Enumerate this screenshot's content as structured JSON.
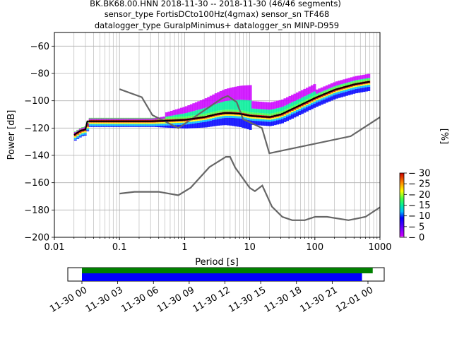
{
  "chart_data": [
    {
      "type": "heatmap",
      "title_lines": [
        "BK.BK68.00.HNN   2018-11-30 -- 2018-11-30  (46/46 segments)",
        "sensor_type FortisDCto100Hz(4gmax) sensor_sn TF468",
        "datalogger_type GuralpMinimus+ datalogger_sn MINP-D959"
      ],
      "xlabel": "Period [s]",
      "ylabel": "Power [dB]",
      "xscale": "log",
      "xlim": [
        0.01,
        1000
      ],
      "ylim": [
        -200,
        -50
      ],
      "grid": true,
      "x_ticks": [
        {
          "value": 0.01,
          "label": "0.01"
        },
        {
          "value": 0.1,
          "label": "0.1"
        },
        {
          "value": 1,
          "label": "1"
        },
        {
          "value": 10,
          "label": "10"
        },
        {
          "value": 100,
          "label": "100"
        },
        {
          "value": 1000,
          "label": "1000"
        }
      ],
      "y_ticks": [
        {
          "value": -60,
          "label": "−60"
        },
        {
          "value": -80,
          "label": "−80"
        },
        {
          "value": -100,
          "label": "−100"
        },
        {
          "value": -120,
          "label": "−120"
        },
        {
          "value": -140,
          "label": "−140"
        },
        {
          "value": -160,
          "label": "−160"
        },
        {
          "value": -180,
          "label": "−180"
        },
        {
          "value": -200,
          "label": "−200"
        }
      ],
      "noise_models": {
        "color": "#666666",
        "high": {
          "x": [
            0.1,
            0.22,
            0.32,
            0.8,
            3.8,
            4.6,
            6.3,
            7.9,
            15.4,
            20,
            354.8,
            1000
          ],
          "y": [
            -91.5,
            -97.4,
            -110.5,
            -120,
            -98,
            -96.5,
            -101,
            -113.5,
            -120,
            -138.5,
            -126,
            -112
          ]
        },
        "low": {
          "x": [
            0.1,
            0.17,
            0.4,
            0.8,
            1.24,
            2.4,
            4.3,
            5,
            6,
            10,
            12,
            15.6,
            21.9,
            31.6,
            45,
            70,
            101,
            154,
            328,
            600,
            1000
          ],
          "y": [
            -168,
            -166.7,
            -166.7,
            -169.2,
            -163.7,
            -148.6,
            -141.1,
            -141.1,
            -149,
            -163.8,
            -166.2,
            -162.1,
            -177.5,
            -185,
            -187.5,
            -187.5,
            -185,
            -185,
            -187.5,
            -185,
            -178
          ]
        }
      },
      "median_line": {
        "color": "#000000",
        "x": [
          0.02,
          0.025,
          0.03,
          0.032,
          0.05,
          0.1,
          0.3,
          0.6,
          1,
          2,
          3,
          4,
          5,
          7,
          10,
          20,
          30,
          50,
          100,
          200,
          400,
          700
        ],
        "y": [
          -125,
          -122,
          -121,
          -115,
          -115,
          -115,
          -115,
          -114.5,
          -114,
          -112,
          -110,
          -109,
          -109,
          -109.5,
          -111,
          -112,
          -110,
          -105,
          -98,
          -92,
          -88,
          -86
        ]
      },
      "colorbar": {
        "label": "[%]",
        "min": 0,
        "max": 30,
        "ticks": [
          0,
          5,
          10,
          15,
          20,
          25,
          30
        ],
        "colormap": "pqlx"
      }
    },
    {
      "type": "timeline",
      "start": "2018-11-30 00:00",
      "end": "2018-12-01 01:30",
      "tick_labels": [
        "11-30 00",
        "11-30 03",
        "11-30 06",
        "11-30 09",
        "11-30 12",
        "11-30 15",
        "11-30 18",
        "11-30 21",
        "12-01 00"
      ],
      "tick_hours": [
        0,
        3,
        6,
        9,
        12,
        15,
        18,
        21,
        24
      ],
      "bars": [
        {
          "color": "#008000",
          "start_hour": 0,
          "end_hour": 24.4
        },
        {
          "color": "#0000ff",
          "start_hour": 0,
          "end_hour": 23.5
        }
      ]
    }
  ]
}
